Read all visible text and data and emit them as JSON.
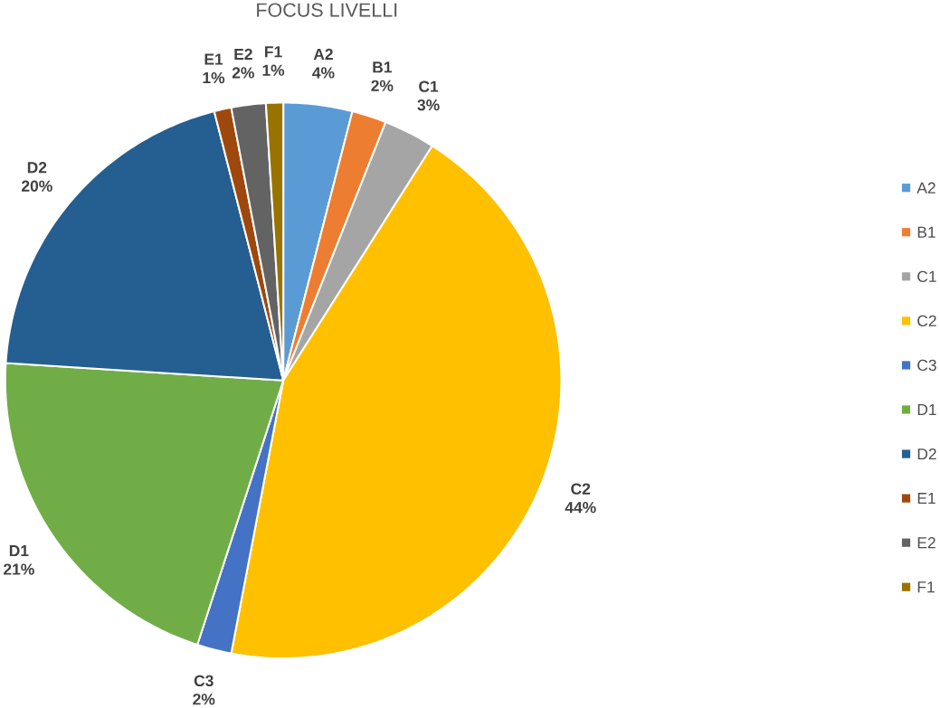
{
  "chart_data": {
    "type": "pie",
    "title": "FOCUS LIVELLI",
    "categories": [
      "A2",
      "B1",
      "C1",
      "C2",
      "C3",
      "D1",
      "D2",
      "E1",
      "E2",
      "F1"
    ],
    "values": [
      4,
      2,
      3,
      44,
      2,
      21,
      20,
      1,
      2,
      1
    ],
    "value_labels": [
      "4%",
      "2%",
      "3%",
      "44%",
      "2%",
      "21%",
      "20%",
      "1%",
      "2%",
      "1%"
    ],
    "colors": [
      "#5b9bd5",
      "#ed7d31",
      "#a5a5a5",
      "#ffc000",
      "#4472c4",
      "#70ad47",
      "#255e91",
      "#9e480e",
      "#636363",
      "#997300"
    ],
    "legend": "right"
  }
}
